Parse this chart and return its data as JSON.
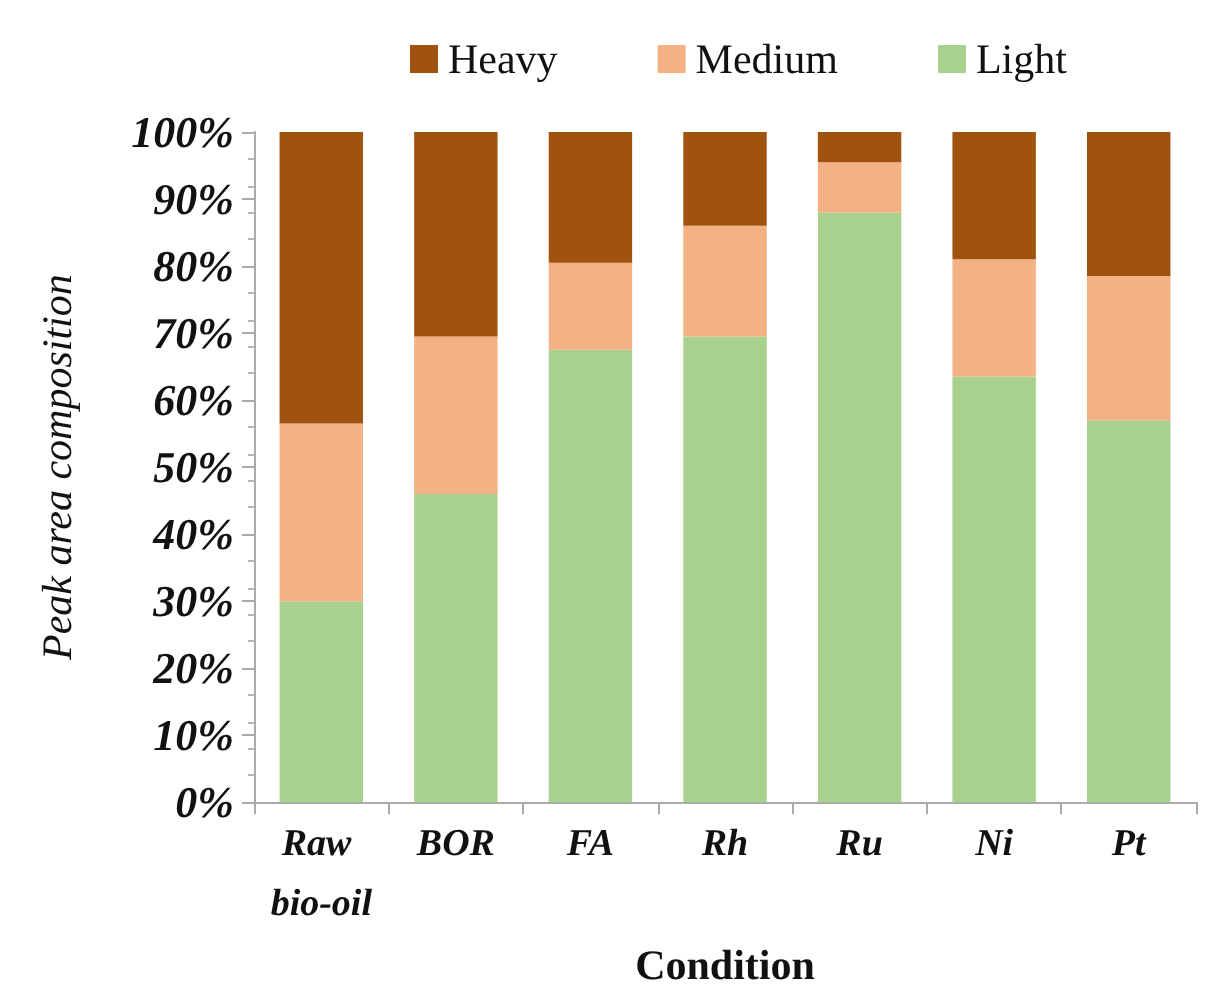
{
  "chart_data": {
    "type": "bar",
    "stacked": true,
    "xlabel": "Condition",
    "ylabel": "Peak area composition",
    "categories": [
      "Raw bio-oil",
      "BOR",
      "FA",
      "Rh",
      "Ru",
      "Ni",
      "Pt"
    ],
    "series": [
      {
        "name": "Light",
        "color": "#a9d18e",
        "values": [
          30,
          46,
          67.5,
          69.5,
          88,
          63.5,
          57
        ]
      },
      {
        "name": "Medium",
        "color": "#f4b183",
        "values": [
          26.5,
          23.5,
          13,
          16.5,
          7.5,
          17.5,
          21.5
        ]
      },
      {
        "name": "Heavy",
        "color": "#a0520f",
        "values": [
          43.5,
          30.5,
          19.5,
          14,
          4.5,
          19,
          21.5
        ]
      }
    ],
    "ylim": [
      0,
      100
    ],
    "yticks": [
      {
        "value": 0,
        "label": "0%"
      },
      {
        "value": 10,
        "label": "10%"
      },
      {
        "value": 20,
        "label": "20%"
      },
      {
        "value": 30,
        "label": "30%"
      },
      {
        "value": 40,
        "label": "40%"
      },
      {
        "value": 50,
        "label": "50%"
      },
      {
        "value": 60,
        "label": "60%"
      },
      {
        "value": 70,
        "label": "70%"
      },
      {
        "value": 80,
        "label": "80%"
      },
      {
        "value": 90,
        "label": "90%"
      },
      {
        "value": 100,
        "label": "100%"
      }
    ],
    "grid": false,
    "legend": "top"
  }
}
